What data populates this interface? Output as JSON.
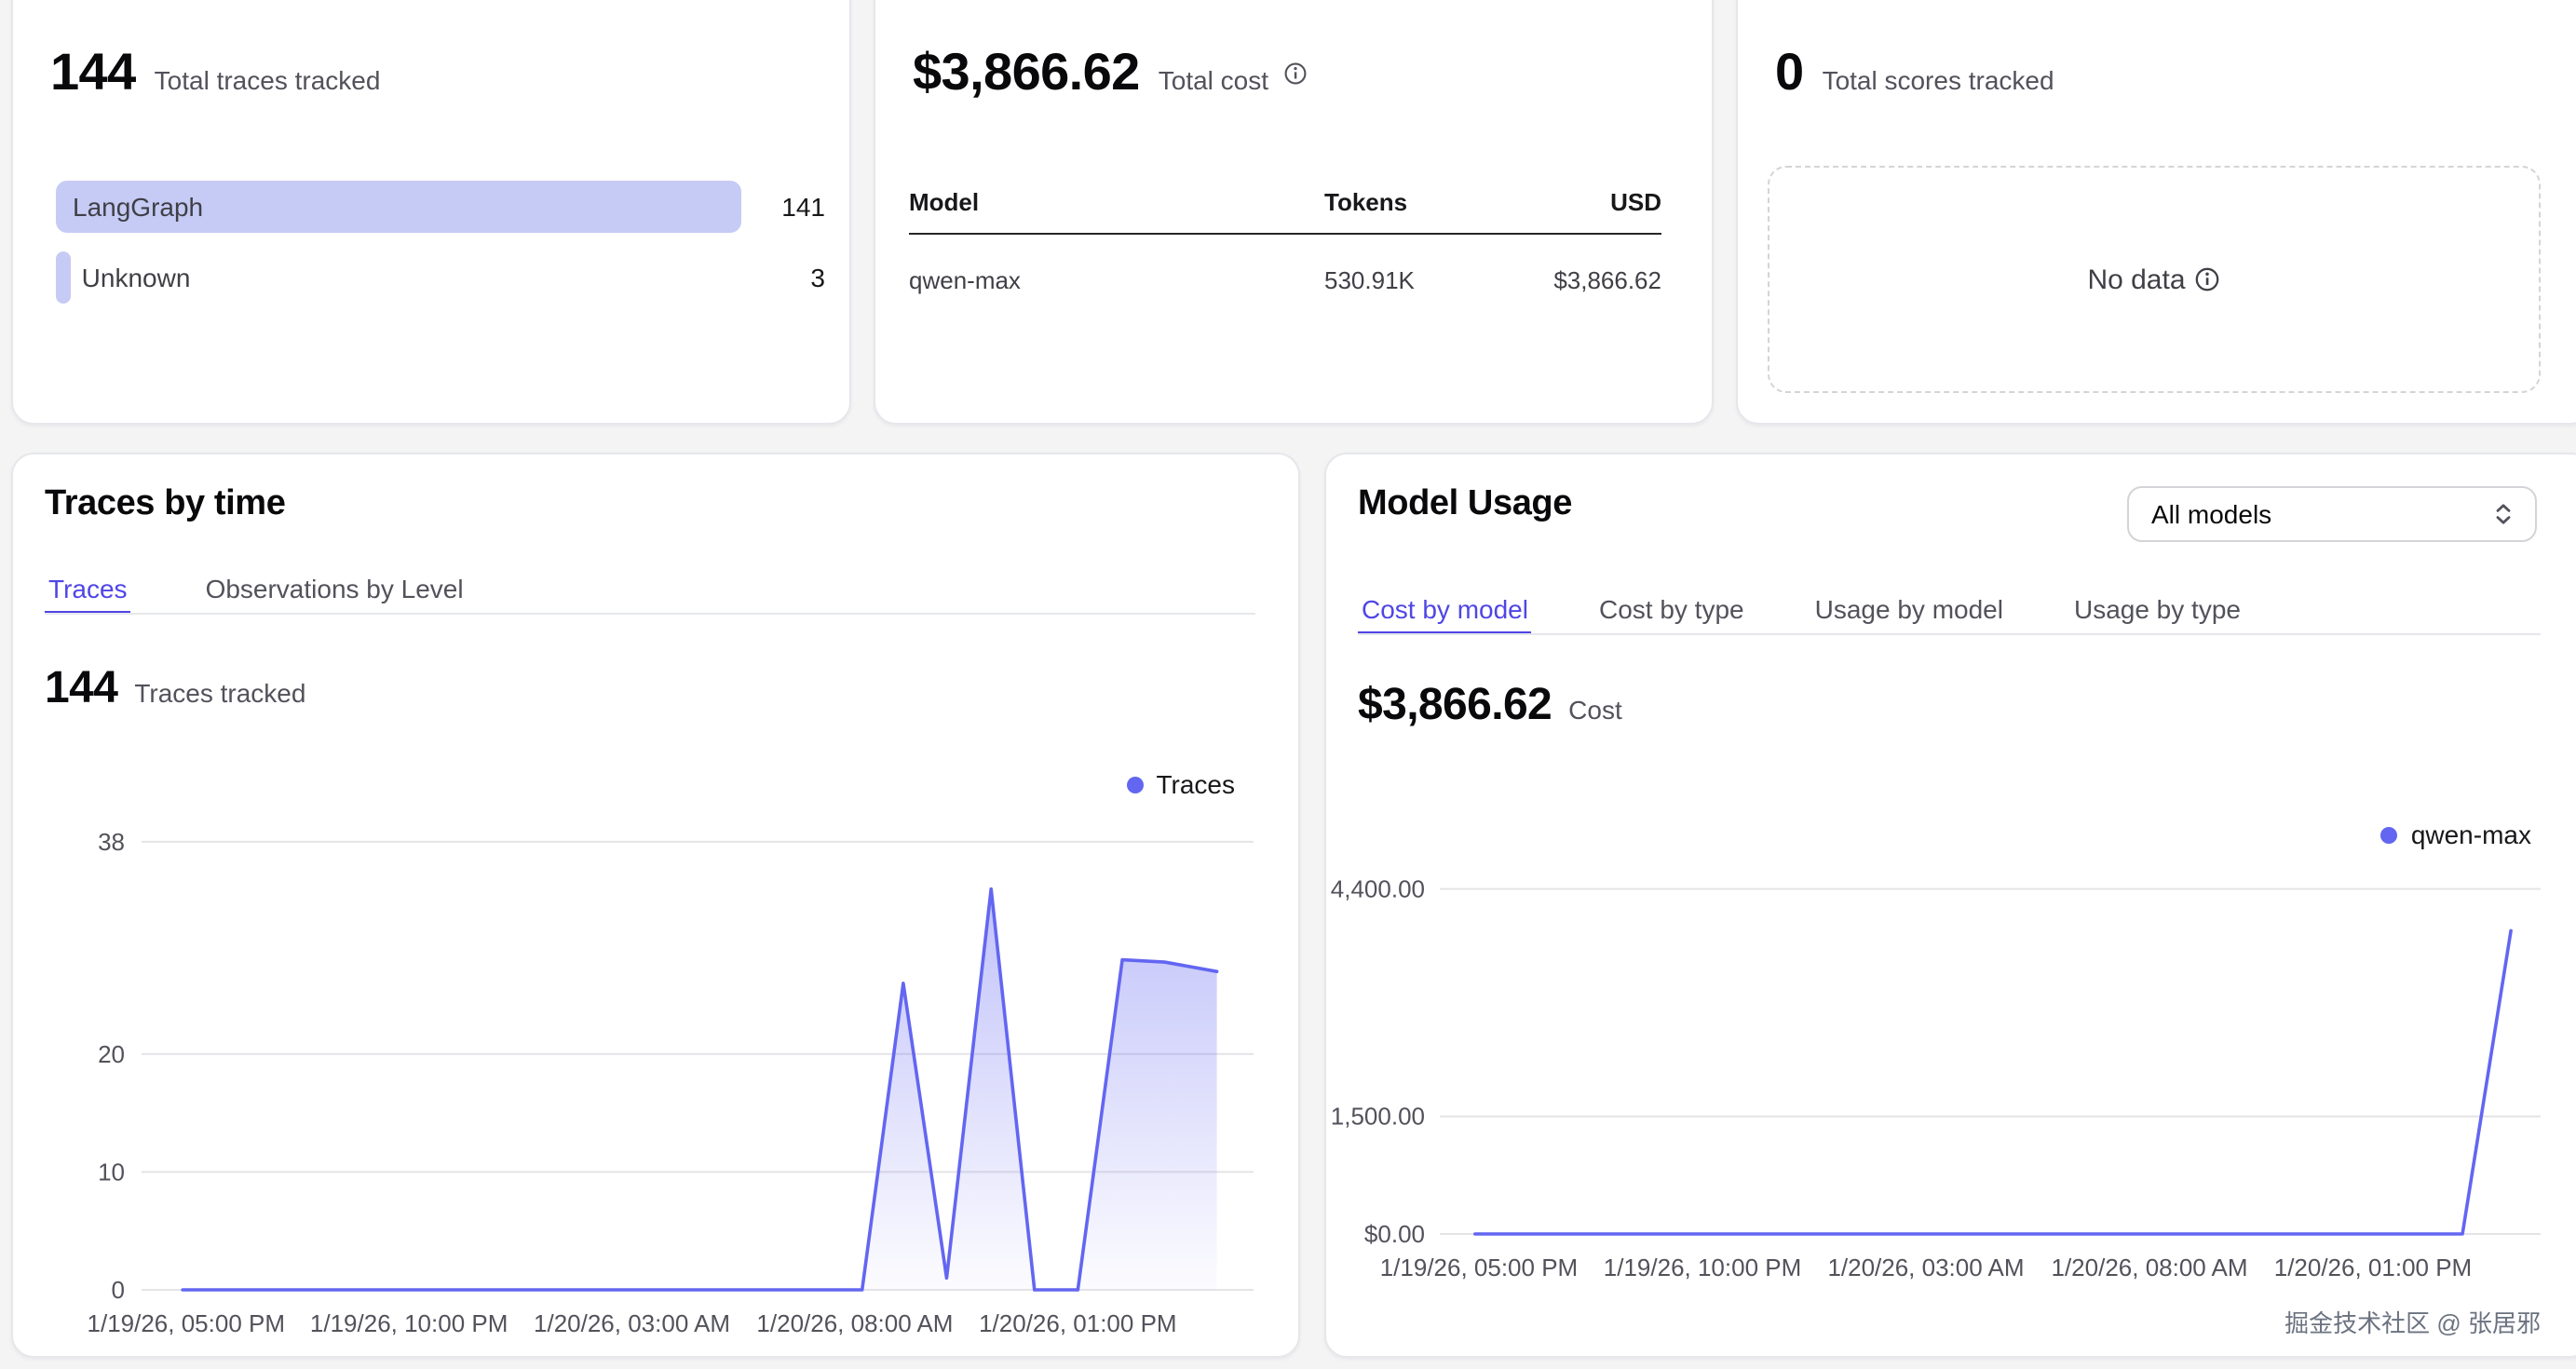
{
  "cards": {
    "traces": {
      "value": "144",
      "label": "Total traces tracked",
      "bars": [
        {
          "name": "LangGraph",
          "value": "141"
        },
        {
          "name": "Unknown",
          "value": "3"
        }
      ]
    },
    "cost": {
      "value": "$3,866.62",
      "label": "Total cost",
      "table": {
        "headers": [
          "Model",
          "Tokens",
          "USD"
        ],
        "rows": [
          [
            "qwen-max",
            "530.91K",
            "$3,866.62"
          ]
        ]
      }
    },
    "scores": {
      "value": "0",
      "label": "Total scores tracked",
      "empty_text": "No data"
    }
  },
  "traces_by_time": {
    "title": "Traces by time",
    "tabs": [
      "Traces",
      "Observations by Level"
    ],
    "active_tab": 0,
    "metric_value": "144",
    "metric_label": "Traces tracked",
    "legend_label": "Traces",
    "chart_data": {
      "type": "line",
      "title": "Traces tracked over time",
      "x_ticks": [
        "1/19/26, 05:00 PM",
        "1/19/26, 10:00 PM",
        "1/20/26, 03:00 AM",
        "1/20/26, 08:00 AM",
        "1/20/26, 01:00 PM"
      ],
      "y_ticks": [
        {
          "label": "0",
          "v": 0
        },
        {
          "label": "10",
          "v": 10
        },
        {
          "label": "20",
          "v": 20
        },
        {
          "label": "38",
          "v": 38
        }
      ],
      "ylim": [
        0,
        39.5
      ],
      "grid": true,
      "legend_position": "top-right",
      "series": [
        {
          "name": "Traces",
          "area": true,
          "points": [
            {
              "x": 0.037,
              "v": 0
            },
            {
              "x": 0.648,
              "v": 0
            },
            {
              "x": 0.685,
              "v": 26
            },
            {
              "x": 0.724,
              "v": 1
            },
            {
              "x": 0.764,
              "v": 34
            },
            {
              "x": 0.803,
              "v": 0
            },
            {
              "x": 0.842,
              "v": 0
            },
            {
              "x": 0.882,
              "v": 28
            },
            {
              "x": 0.92,
              "v": 27.8
            },
            {
              "x": 0.967,
              "v": 27
            }
          ]
        }
      ]
    }
  },
  "model_usage": {
    "title": "Model Usage",
    "select_value": "All models",
    "tabs": [
      "Cost by model",
      "Cost by type",
      "Usage by model",
      "Usage by type"
    ],
    "active_tab": 0,
    "metric_value": "$3,866.62",
    "metric_label": "Cost",
    "legend_label": "qwen-max",
    "chart_data": {
      "type": "line",
      "title": "Cost by model over time",
      "x_ticks": [
        "1/19/26, 05:00 PM",
        "1/19/26, 10:00 PM",
        "1/20/26, 03:00 AM",
        "1/20/26, 08:00 AM",
        "1/20/26, 01:00 PM"
      ],
      "y_ticks": [
        {
          "label": "$0.00",
          "v": 0
        },
        {
          "label": "1,500.00",
          "v": 1500
        },
        {
          "label": "4,400.00",
          "v": 4400
        }
      ],
      "ylim": [
        0,
        5150
      ],
      "grid": true,
      "legend_position": "top-right",
      "series": [
        {
          "name": "qwen-max",
          "area": false,
          "points": [
            {
              "x": 0.032,
              "v": 0
            },
            {
              "x": 0.929,
              "v": 0
            },
            {
              "x": 0.973,
              "v": 3866.62
            }
          ]
        }
      ]
    }
  },
  "watermark": "掘金技术社区 @ 张居邪",
  "colors": {
    "accent": "#6366f1",
    "active_tab": "#4f46e5",
    "bar_fill": "#c6cbf5"
  }
}
